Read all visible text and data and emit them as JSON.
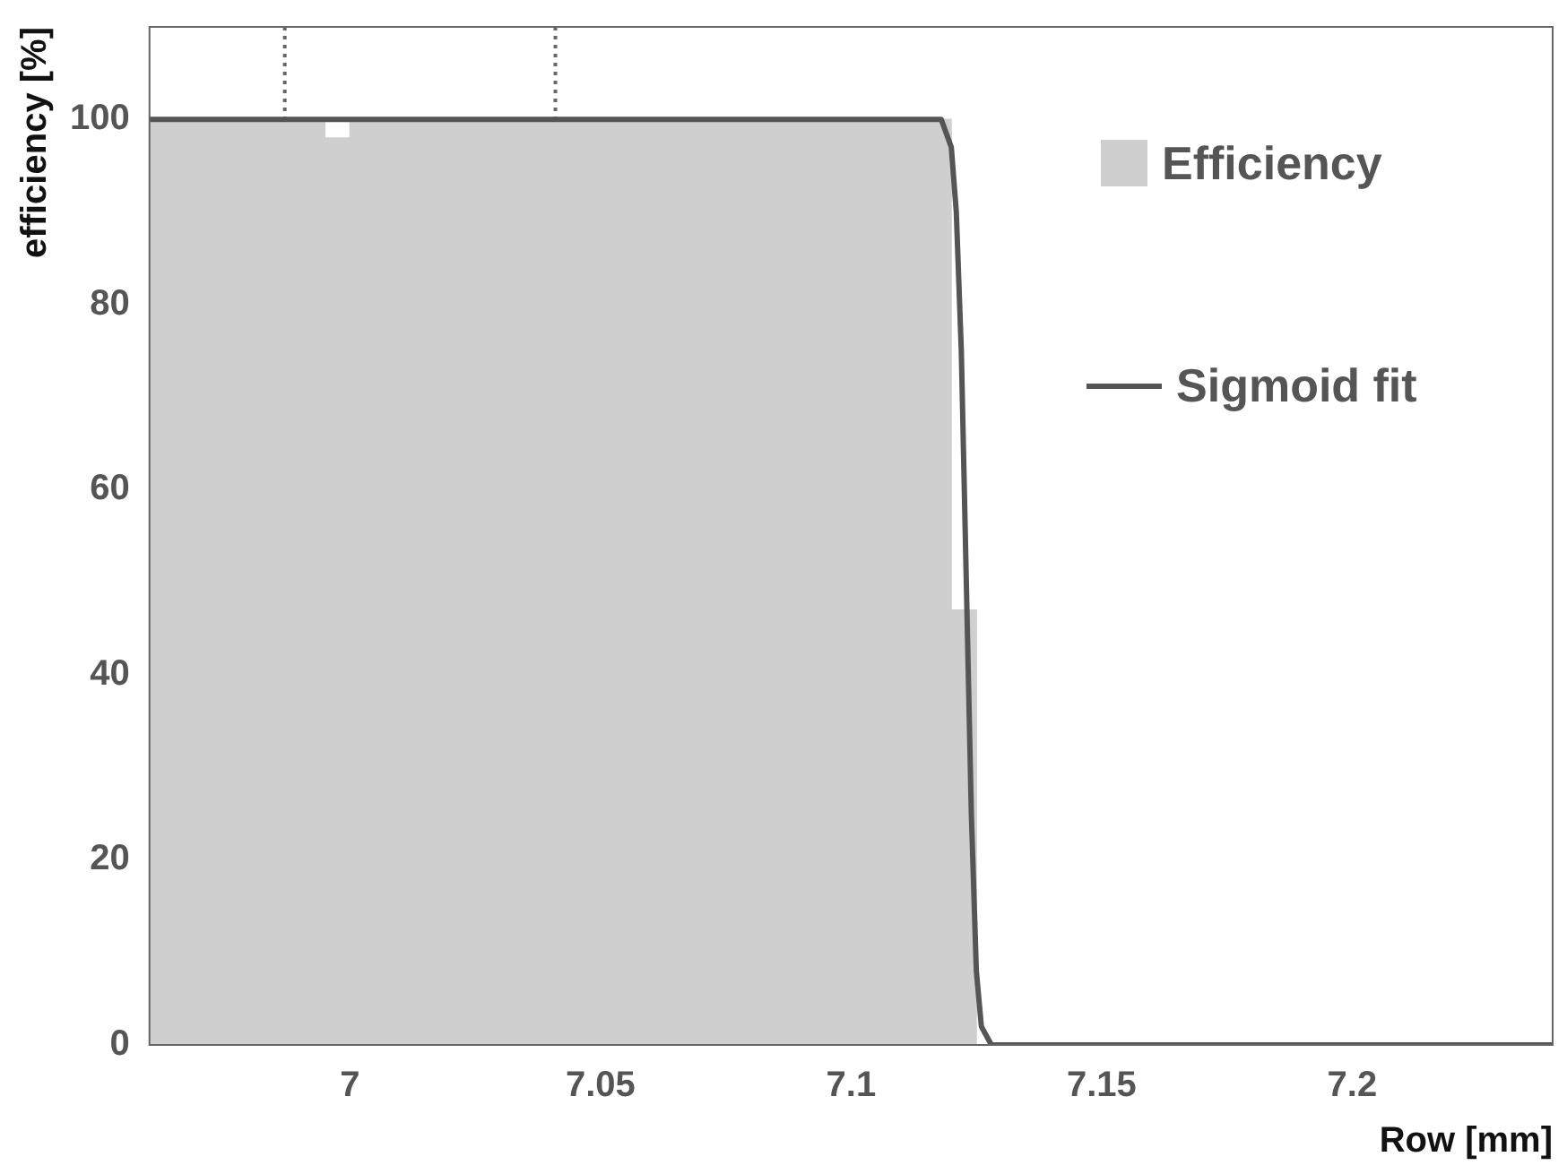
{
  "chart_data": {
    "type": "histogram",
    "xlabel": "Row [mm]",
    "ylabel": "efficiency [%]",
    "xlim": [
      6.96,
      7.24
    ],
    "xticks": [
      7,
      7.05,
      7.1,
      7.15,
      7.2
    ],
    "ylim": [
      0,
      110
    ],
    "yticks": [
      0,
      20,
      40,
      60,
      80,
      100
    ],
    "grid": false,
    "legend": "top right",
    "series": [
      {
        "name": "Efficiency",
        "color": "#cfcfcf",
        "bins": [
          6.96,
          6.965,
          6.97,
          6.975,
          6.98,
          6.985,
          6.99,
          6.995,
          7.0,
          7.005,
          7.01,
          7.015,
          7.02,
          7.025,
          7.03,
          7.035,
          7.04,
          7.045,
          7.05,
          7.055,
          7.06,
          7.065,
          7.07,
          7.075,
          7.08,
          7.085,
          7.09,
          7.095,
          7.1,
          7.105,
          7.11,
          7.115,
          7.12,
          7.125,
          7.13,
          7.135,
          7.14,
          7.145,
          7.15,
          7.155,
          7.16,
          7.165,
          7.17,
          7.175,
          7.18,
          7.185,
          7.19,
          7.195,
          7.2,
          7.205,
          7.21,
          7.215,
          7.22,
          7.225,
          7.23,
          7.235,
          7.24
        ],
        "values": [
          100,
          100,
          100,
          100,
          100,
          100,
          100,
          98,
          100,
          100,
          100,
          100,
          100,
          100,
          100,
          100,
          100,
          100,
          100,
          100,
          100,
          100,
          100,
          100,
          100,
          100,
          100,
          100,
          100,
          100,
          100,
          100,
          47,
          0,
          0,
          0,
          0,
          0,
          0,
          0,
          0,
          0,
          0,
          0,
          0,
          0,
          0,
          0,
          0,
          0,
          0,
          0,
          0,
          0,
          0,
          0
        ]
      },
      {
        "type": "line",
        "name": "Sigmoid fit",
        "color": "#555555",
        "x": [
          6.96,
          7.118,
          7.12,
          7.121,
          7.122,
          7.123,
          7.124,
          7.125,
          7.126,
          7.128,
          7.24
        ],
        "values": [
          100,
          100,
          97,
          90,
          75,
          50,
          25,
          8,
          2,
          0,
          0
        ]
      }
    ],
    "ref_lines": [
      {
        "axis": "x",
        "value": 6.987,
        "line_style": "dotted",
        "color": "#666666"
      },
      {
        "axis": "x",
        "value": 7.041,
        "line_style": "dotted",
        "color": "#666666"
      }
    ]
  }
}
